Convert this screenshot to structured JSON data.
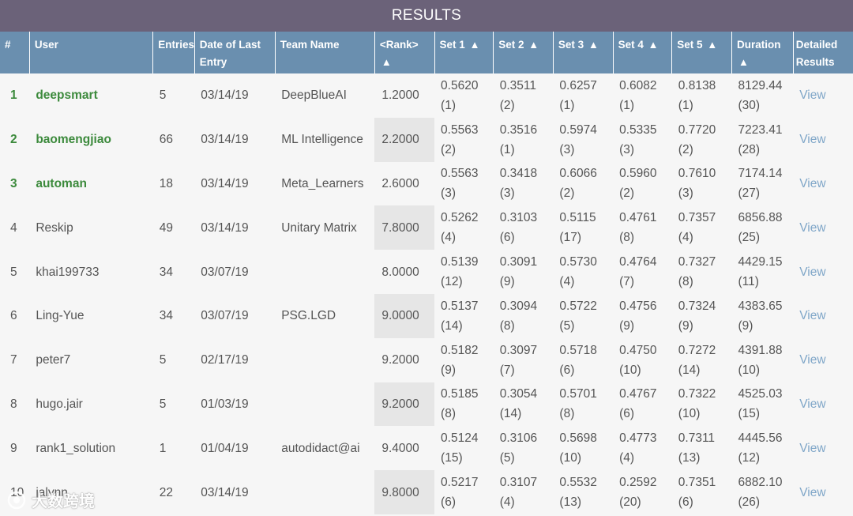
{
  "title": "RESULTS",
  "headers": {
    "num": "#",
    "user": "User",
    "entries": "Entries",
    "date": "Date of Last Entry",
    "team": "Team Name",
    "rank": "<Rank>",
    "set1": "Set 1",
    "set2": "Set 2",
    "set3": "Set 3",
    "set4": "Set 4",
    "set5": "Set 5",
    "duration": "Duration",
    "detailed": "Detailed Results"
  },
  "sort_arrow": "▲",
  "rows": [
    {
      "num": "1",
      "user": "deepsmart",
      "entries": "5",
      "date": "03/14/19",
      "team": "DeepBlueAI",
      "rank": "1.2000",
      "set1": "0.5620",
      "set1_rank": "(1)",
      "set2": "0.3511",
      "set2_rank": "(2)",
      "set3": "0.6257",
      "set3_rank": "(1)",
      "set4": "0.6082",
      "set4_rank": "(1)",
      "set5": "0.8138",
      "set5_rank": "(1)",
      "duration": "8129.44",
      "duration_rank": "(30)",
      "link": "View"
    },
    {
      "num": "2",
      "user": "baomengjiao",
      "entries": "66",
      "date": "03/14/19",
      "team": "ML Intelligence",
      "rank": "2.2000",
      "set1": "0.5563",
      "set1_rank": "(2)",
      "set2": "0.3516",
      "set2_rank": "(1)",
      "set3": "0.5974",
      "set3_rank": "(3)",
      "set4": "0.5335",
      "set4_rank": "(3)",
      "set5": "0.7720",
      "set5_rank": "(2)",
      "duration": "7223.41",
      "duration_rank": "(28)",
      "link": "View"
    },
    {
      "num": "3",
      "user": "automan",
      "entries": "18",
      "date": "03/14/19",
      "team": "Meta_Learners",
      "rank": "2.6000",
      "set1": "0.5563",
      "set1_rank": "(3)",
      "set2": "0.3418",
      "set2_rank": "(3)",
      "set3": "0.6066",
      "set3_rank": "(2)",
      "set4": "0.5960",
      "set4_rank": "(2)",
      "set5": "0.7610",
      "set5_rank": "(3)",
      "duration": "7174.14",
      "duration_rank": "(27)",
      "link": "View"
    },
    {
      "num": "4",
      "user": "Reskip",
      "entries": "49",
      "date": "03/14/19",
      "team": "Unitary Matrix",
      "rank": "7.8000",
      "set1": "0.5262",
      "set1_rank": "(4)",
      "set2": "0.3103",
      "set2_rank": "(6)",
      "set3": "0.5115",
      "set3_rank": "(17)",
      "set4": "0.4761",
      "set4_rank": "(8)",
      "set5": "0.7357",
      "set5_rank": "(4)",
      "duration": "6856.88",
      "duration_rank": "(25)",
      "link": "View"
    },
    {
      "num": "5",
      "user": "khai199733",
      "entries": "34",
      "date": "03/07/19",
      "team": "",
      "rank": "8.0000",
      "set1": "0.5139",
      "set1_rank": "(12)",
      "set2": "0.3091",
      "set2_rank": "(9)",
      "set3": "0.5730",
      "set3_rank": "(4)",
      "set4": "0.4764",
      "set4_rank": "(7)",
      "set5": "0.7327",
      "set5_rank": "(8)",
      "duration": "4429.15",
      "duration_rank": "(11)",
      "link": "View"
    },
    {
      "num": "6",
      "user": "Ling-Yue",
      "entries": "34",
      "date": "03/07/19",
      "team": "PSG.LGD",
      "rank": "9.0000",
      "set1": "0.5137",
      "set1_rank": "(14)",
      "set2": "0.3094",
      "set2_rank": "(8)",
      "set3": "0.5722",
      "set3_rank": "(5)",
      "set4": "0.4756",
      "set4_rank": "(9)",
      "set5": "0.7324",
      "set5_rank": "(9)",
      "duration": "4383.65",
      "duration_rank": "(9)",
      "link": "View"
    },
    {
      "num": "7",
      "user": "peter7",
      "entries": "5",
      "date": "02/17/19",
      "team": "",
      "rank": "9.2000",
      "set1": "0.5182",
      "set1_rank": "(9)",
      "set2": "0.3097",
      "set2_rank": "(7)",
      "set3": "0.5718",
      "set3_rank": "(6)",
      "set4": "0.4750",
      "set4_rank": "(10)",
      "set5": "0.7272",
      "set5_rank": "(14)",
      "duration": "4391.88",
      "duration_rank": "(10)",
      "link": "View"
    },
    {
      "num": "8",
      "user": "hugo.jair",
      "entries": "5",
      "date": "01/03/19",
      "team": "",
      "rank": "9.2000",
      "set1": "0.5185",
      "set1_rank": "(8)",
      "set2": "0.3054",
      "set2_rank": "(14)",
      "set3": "0.5701",
      "set3_rank": "(8)",
      "set4": "0.4767",
      "set4_rank": "(6)",
      "set5": "0.7322",
      "set5_rank": "(10)",
      "duration": "4525.03",
      "duration_rank": "(15)",
      "link": "View"
    },
    {
      "num": "9",
      "user": "rank1_solution",
      "entries": "1",
      "date": "01/04/19",
      "team": "autodidact@ai",
      "rank": "9.4000",
      "set1": "0.5124",
      "set1_rank": "(15)",
      "set2": "0.3106",
      "set2_rank": "(5)",
      "set3": "0.5698",
      "set3_rank": "(10)",
      "set4": "0.4773",
      "set4_rank": "(4)",
      "set5": "0.7311",
      "set5_rank": "(13)",
      "duration": "4445.56",
      "duration_rank": "(12)",
      "link": "View"
    },
    {
      "num": "10",
      "user": "jalynn",
      "entries": "22",
      "date": "03/14/19",
      "team": "",
      "rank": "9.8000",
      "set1": "0.5217",
      "set1_rank": "(6)",
      "set2": "0.3107",
      "set2_rank": "(4)",
      "set3": "0.5532",
      "set3_rank": "(13)",
      "set4": "0.2592",
      "set4_rank": "(20)",
      "set5": "0.7351",
      "set5_rank": "(6)",
      "duration": "6882.10",
      "duration_rank": "(26)",
      "link": "View"
    }
  ],
  "watermark": "大数跨境",
  "colors": {
    "title_bg": "#6b6279",
    "header_bg": "#6a8faf",
    "top_green": "#3c8a3c",
    "link_blue": "#7fa6c8",
    "rank_shade": "#e6e6e6"
  }
}
